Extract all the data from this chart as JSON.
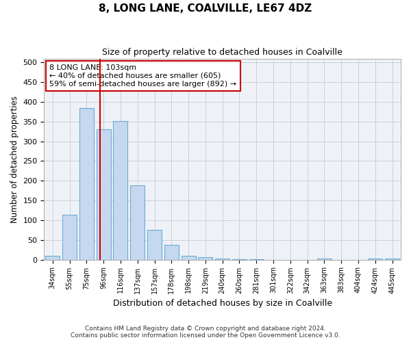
{
  "title1": "8, LONG LANE, COALVILLE, LE67 4DZ",
  "title2": "Size of property relative to detached houses in Coalville",
  "xlabel": "Distribution of detached houses by size in Coalville",
  "ylabel": "Number of detached properties",
  "categories": [
    "34sqm",
    "55sqm",
    "75sqm",
    "96sqm",
    "116sqm",
    "137sqm",
    "157sqm",
    "178sqm",
    "198sqm",
    "219sqm",
    "240sqm",
    "260sqm",
    "281sqm",
    "301sqm",
    "322sqm",
    "342sqm",
    "363sqm",
    "383sqm",
    "404sqm",
    "424sqm",
    "445sqm"
  ],
  "values": [
    10,
    114,
    384,
    330,
    352,
    188,
    75,
    37,
    10,
    6,
    3,
    1,
    1,
    0,
    0,
    0,
    3,
    0,
    0,
    3,
    3
  ],
  "bar_color": "#c5d8ef",
  "bar_edge_color": "#6aaad4",
  "grid_color": "#c8d0d8",
  "background_color": "#eef2f7",
  "annotation_line1": "8 LONG LANE: 103sqm",
  "annotation_line2": "← 40% of detached houses are smaller (605)",
  "annotation_line3": "59% of semi-detached houses are larger (892) →",
  "vline_x": 2.78,
  "vline_color": "#cc0000",
  "box_color": "#cc0000",
  "ylim": [
    0,
    510
  ],
  "yticks": [
    0,
    50,
    100,
    150,
    200,
    250,
    300,
    350,
    400,
    450,
    500
  ],
  "footer1": "Contains HM Land Registry data © Crown copyright and database right 2024.",
  "footer2": "Contains public sector information licensed under the Open Government Licence v3.0."
}
